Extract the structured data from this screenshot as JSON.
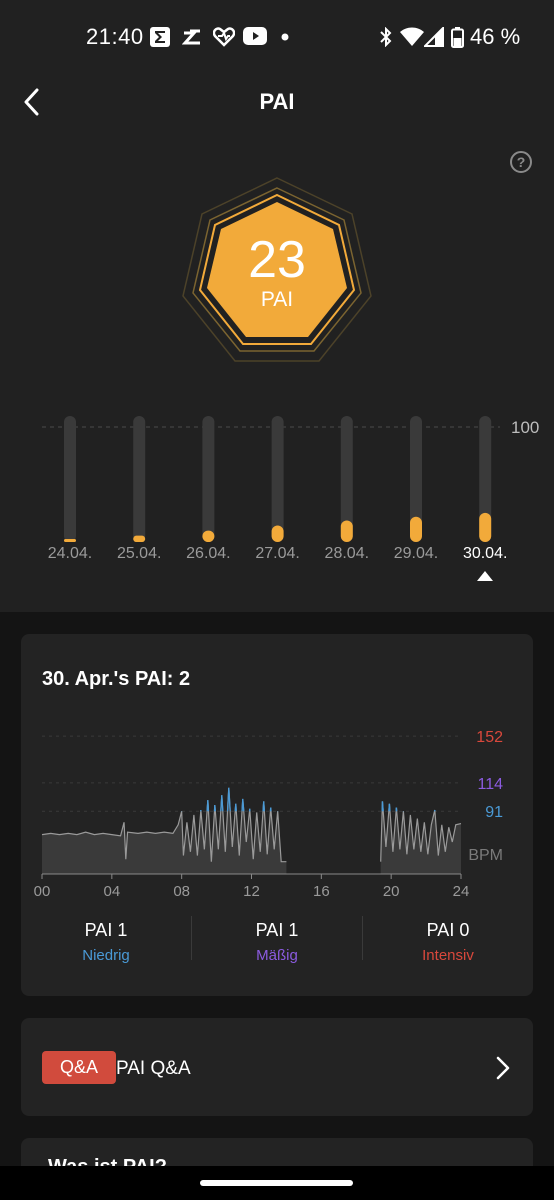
{
  "status_bar": {
    "time": "21:40",
    "notification_icons": [
      "sigma-icon",
      "zepp-icon",
      "health-icon",
      "youtube-icon",
      "dot-icon"
    ],
    "system_icons": [
      "bluetooth-icon",
      "wifi-icon",
      "signal-icon",
      "battery-icon"
    ],
    "battery": "46 %"
  },
  "header": {
    "title": "PAI",
    "back_icon": "back-arrow-icon",
    "help_icon": "help-icon",
    "help_glyph": "?"
  },
  "badge": {
    "value": "23",
    "unit": "PAI",
    "color": "#f2aa3a"
  },
  "weekly": {
    "max_label": "100",
    "days": [
      {
        "label": "24.04.",
        "value": 1,
        "selected": false
      },
      {
        "label": "25.04.",
        "value": 5,
        "selected": false
      },
      {
        "label": "26.04.",
        "value": 9,
        "selected": false
      },
      {
        "label": "27.04.",
        "value": 13,
        "selected": false
      },
      {
        "label": "28.04.",
        "value": 17,
        "selected": false
      },
      {
        "label": "29.04.",
        "value": 20,
        "selected": false
      },
      {
        "label": "30.04.",
        "value": 23,
        "selected": true
      }
    ],
    "max": 100
  },
  "day_card": {
    "title": "30. Apr.'s PAI: 2",
    "stats": [
      {
        "value": "PAI 1",
        "label": "Niedrig",
        "color": "#4a9ad6"
      },
      {
        "value": "PAI 1",
        "label": "Mäßig",
        "color": "#8b5be0"
      },
      {
        "value": "PAI 0",
        "label": "Intensiv",
        "color": "#d9483c"
      }
    ]
  },
  "chart_data": {
    "type": "area",
    "unit": "BPM",
    "x_ticks": [
      "00",
      "04",
      "08",
      "12",
      "16",
      "20",
      "24"
    ],
    "x_range": [
      0,
      24
    ],
    "y_reference_lines": [
      {
        "value": 152,
        "color": "#d9483c"
      },
      {
        "value": 114,
        "color": "#8b5be0"
      },
      {
        "value": 91,
        "color": "#4a9ad6"
      }
    ],
    "ylim": [
      40,
      170
    ],
    "grid": true,
    "series": [
      {
        "values": [
          [
            0,
            72
          ],
          [
            0.5,
            73
          ],
          [
            1,
            72
          ],
          [
            1.5,
            73
          ],
          [
            2,
            72
          ],
          [
            2.5,
            74
          ],
          [
            3,
            72
          ],
          [
            3.5,
            73
          ],
          [
            4,
            72
          ],
          [
            4.5,
            71
          ],
          [
            4.7,
            82
          ],
          [
            4.8,
            52
          ],
          [
            4.9,
            74
          ],
          [
            5.5,
            73
          ],
          [
            6,
            74
          ],
          [
            6.5,
            73
          ],
          [
            7,
            74
          ],
          [
            7.5,
            73
          ],
          [
            7.8,
            80
          ],
          [
            8.0,
            91
          ],
          [
            8.1,
            55
          ],
          [
            8.3,
            82
          ],
          [
            8.5,
            58
          ],
          [
            8.7,
            88
          ],
          [
            8.9,
            55
          ],
          [
            9.1,
            92
          ],
          [
            9.3,
            60
          ],
          [
            9.5,
            100
          ],
          [
            9.7,
            50
          ],
          [
            9.9,
            96
          ],
          [
            10.1,
            60
          ],
          [
            10.3,
            104
          ],
          [
            10.5,
            58
          ],
          [
            10.7,
            110
          ],
          [
            10.9,
            62
          ],
          [
            11.1,
            97
          ],
          [
            11.3,
            55
          ],
          [
            11.5,
            101
          ],
          [
            11.7,
            66
          ],
          [
            11.9,
            93
          ],
          [
            12.1,
            52
          ],
          [
            12.3,
            90
          ],
          [
            12.5,
            58
          ],
          [
            12.7,
            99
          ],
          [
            12.9,
            56
          ],
          [
            13.1,
            94
          ],
          [
            13.3,
            60
          ],
          [
            13.5,
            91
          ],
          [
            13.7,
            50
          ],
          [
            14.0,
            50
          ],
          [
            19.4,
            50
          ],
          [
            19.5,
            99
          ],
          [
            19.7,
            62
          ],
          [
            19.9,
            97
          ],
          [
            20.1,
            58
          ],
          [
            20.3,
            94
          ],
          [
            20.5,
            60
          ],
          [
            20.7,
            91
          ],
          [
            20.9,
            56
          ],
          [
            21.1,
            88
          ],
          [
            21.3,
            60
          ],
          [
            21.5,
            85
          ],
          [
            21.7,
            58
          ],
          [
            21.9,
            82
          ],
          [
            22.1,
            56
          ],
          [
            22.3,
            80
          ],
          [
            22.5,
            92
          ],
          [
            22.7,
            55
          ],
          [
            22.9,
            80
          ],
          [
            23.1,
            58
          ],
          [
            23.3,
            78
          ],
          [
            23.5,
            66
          ],
          [
            23.7,
            80
          ],
          [
            24,
            81
          ]
        ]
      }
    ]
  },
  "qa": {
    "badge": "Q&A",
    "label": "PAI Q&A",
    "chevron_icon": "chevron-right-icon"
  },
  "next_card": {
    "title": "Was ist PAI?"
  }
}
